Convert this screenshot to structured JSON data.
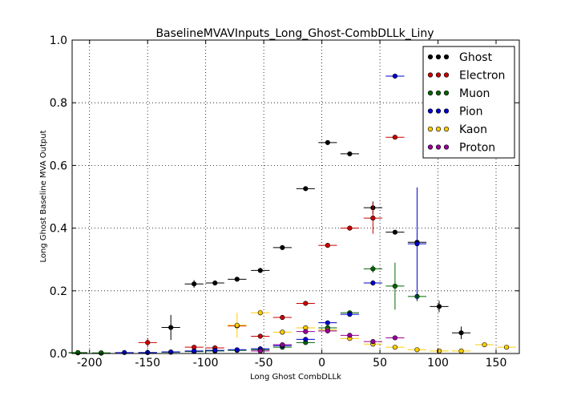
{
  "chart_data": {
    "type": "scatter",
    "title": "BaselineMVAVInputs_Long_Ghost-CombDLLk_Liny",
    "xlabel": "Long Ghost CombDLLk",
    "ylabel": "Long Ghost Baseline MVA Output",
    "xlim": [
      -215,
      170
    ],
    "ylim": [
      0,
      1.0
    ],
    "x_ticks": [
      "-200",
      "-150",
      "-100",
      "-50",
      "0",
      "50",
      "100",
      "150"
    ],
    "y_ticks": [
      "0.0",
      "0.2",
      "0.4",
      "0.6",
      "0.8",
      "1.0"
    ],
    "grid": true,
    "legend_position": "top-right",
    "bin_half_width": 8,
    "series": [
      {
        "name": "Ghost",
        "color": "#000000",
        "points": [
          {
            "x": -210,
            "y": 0.002,
            "e": 0.002
          },
          {
            "x": -190,
            "y": 0.001,
            "e": 0.001
          },
          {
            "x": -130,
            "y": 0.083,
            "e": 0.04
          },
          {
            "x": -110,
            "y": 0.222,
            "e": 0.012
          },
          {
            "x": -92,
            "y": 0.225,
            "e": 0.006
          },
          {
            "x": -73,
            "y": 0.237,
            "e": 0.005
          },
          {
            "x": -53,
            "y": 0.265,
            "e": 0.004
          },
          {
            "x": -34,
            "y": 0.338,
            "e": 0.004
          },
          {
            "x": -14,
            "y": 0.526,
            "e": 0.004
          },
          {
            "x": 5,
            "y": 0.673,
            "e": 0.004
          },
          {
            "x": 24,
            "y": 0.637,
            "e": 0.004
          },
          {
            "x": 44,
            "y": 0.465,
            "e": 0.02
          },
          {
            "x": 63,
            "y": 0.387,
            "e": 0.005
          },
          {
            "x": 82,
            "y": 0.355,
            "e": 0.008
          },
          {
            "x": 101,
            "y": 0.15,
            "e": 0.018
          },
          {
            "x": 120,
            "y": 0.066,
            "e": 0.02
          }
        ]
      },
      {
        "name": "Electron",
        "color": "#cc0000",
        "points": [
          {
            "x": -150,
            "y": 0.035,
            "e": 0.015
          },
          {
            "x": -110,
            "y": 0.02,
            "e": 0.004
          },
          {
            "x": -92,
            "y": 0.018,
            "e": 0.003
          },
          {
            "x": -73,
            "y": 0.088,
            "e": 0.01
          },
          {
            "x": -53,
            "y": 0.055,
            "e": 0.003
          },
          {
            "x": -34,
            "y": 0.115,
            "e": 0.003
          },
          {
            "x": -14,
            "y": 0.16,
            "e": 0.003
          },
          {
            "x": 5,
            "y": 0.345,
            "e": 0.003
          },
          {
            "x": 24,
            "y": 0.4,
            "e": 0.003
          },
          {
            "x": 44,
            "y": 0.432,
            "e": 0.05
          },
          {
            "x": 63,
            "y": 0.69,
            "e": 0.004
          }
        ]
      },
      {
        "name": "Muon",
        "color": "#006600",
        "points": [
          {
            "x": -210,
            "y": 0.003,
            "e": 0.002
          },
          {
            "x": -190,
            "y": 0.002,
            "e": 0.002
          },
          {
            "x": -150,
            "y": 0.003,
            "e": 0.002
          },
          {
            "x": -130,
            "y": 0.004,
            "e": 0.002
          },
          {
            "x": -110,
            "y": 0.006,
            "e": 0.002
          },
          {
            "x": -92,
            "y": 0.008,
            "e": 0.002
          },
          {
            "x": -73,
            "y": 0.01,
            "e": 0.002
          },
          {
            "x": -53,
            "y": 0.012,
            "e": 0.002
          },
          {
            "x": -34,
            "y": 0.02,
            "e": 0.002
          },
          {
            "x": -14,
            "y": 0.035,
            "e": 0.003
          },
          {
            "x": 5,
            "y": 0.082,
            "e": 0.004
          },
          {
            "x": 24,
            "y": 0.13,
            "e": 0.005
          },
          {
            "x": 44,
            "y": 0.27,
            "e": 0.012
          },
          {
            "x": 63,
            "y": 0.215,
            "e": 0.075
          },
          {
            "x": 82,
            "y": 0.182,
            "e": 0.015
          }
        ]
      },
      {
        "name": "Pion",
        "color": "#0000cc",
        "points": [
          {
            "x": -170,
            "y": 0.003,
            "e": 0.002
          },
          {
            "x": -150,
            "y": 0.003,
            "e": 0.002
          },
          {
            "x": -130,
            "y": 0.005,
            "e": 0.002
          },
          {
            "x": -110,
            "y": 0.008,
            "e": 0.002
          },
          {
            "x": -92,
            "y": 0.01,
            "e": 0.002
          },
          {
            "x": -73,
            "y": 0.012,
            "e": 0.002
          },
          {
            "x": -53,
            "y": 0.015,
            "e": 0.002
          },
          {
            "x": -34,
            "y": 0.025,
            "e": 0.002
          },
          {
            "x": -14,
            "y": 0.045,
            "e": 0.003
          },
          {
            "x": 5,
            "y": 0.098,
            "e": 0.004
          },
          {
            "x": 24,
            "y": 0.125,
            "e": 0.004
          },
          {
            "x": 44,
            "y": 0.225,
            "e": 0.008
          },
          {
            "x": 63,
            "y": 0.885,
            "e": 0.004
          },
          {
            "x": 82,
            "y": 0.35,
            "e": 0.18
          }
        ]
      },
      {
        "name": "Kaon",
        "color": "#ffcc00",
        "points": [
          {
            "x": -73,
            "y": 0.09,
            "e": 0.04
          },
          {
            "x": -53,
            "y": 0.13,
            "e": 0.01
          },
          {
            "x": -34,
            "y": 0.068,
            "e": 0.003
          },
          {
            "x": -14,
            "y": 0.082,
            "e": 0.002
          },
          {
            "x": 5,
            "y": 0.075,
            "e": 0.002
          },
          {
            "x": 24,
            "y": 0.048,
            "e": 0.002
          },
          {
            "x": 44,
            "y": 0.03,
            "e": 0.002
          },
          {
            "x": 63,
            "y": 0.02,
            "e": 0.002
          },
          {
            "x": 82,
            "y": 0.012,
            "e": 0.002
          },
          {
            "x": 101,
            "y": 0.008,
            "e": 0.002
          },
          {
            "x": 120,
            "y": 0.008,
            "e": 0.002
          },
          {
            "x": 140,
            "y": 0.028,
            "e": 0.003
          },
          {
            "x": 159,
            "y": 0.02,
            "e": 0.003
          }
        ]
      },
      {
        "name": "Proton",
        "color": "#990099",
        "points": [
          {
            "x": -53,
            "y": 0.008,
            "e": 0.002
          },
          {
            "x": -34,
            "y": 0.028,
            "e": 0.003
          },
          {
            "x": -14,
            "y": 0.07,
            "e": 0.003
          },
          {
            "x": 5,
            "y": 0.072,
            "e": 0.003
          },
          {
            "x": 24,
            "y": 0.058,
            "e": 0.003
          },
          {
            "x": 44,
            "y": 0.038,
            "e": 0.003
          },
          {
            "x": 63,
            "y": 0.05,
            "e": 0.004
          }
        ]
      }
    ]
  }
}
